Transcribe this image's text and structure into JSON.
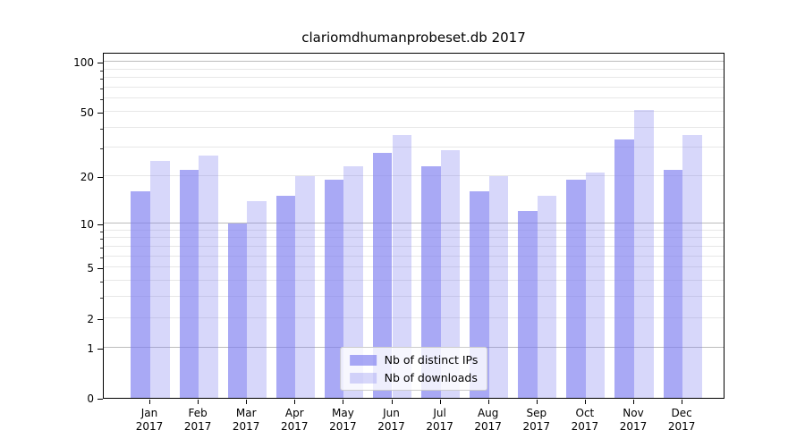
{
  "figure": {
    "background": "#ffffff"
  },
  "chart_data": {
    "type": "bar",
    "title": "clariomdhumanprobeset.db 2017",
    "categories": [
      "Jan",
      "Feb",
      "Mar",
      "Apr",
      "May",
      "Jun",
      "Jul",
      "Aug",
      "Sep",
      "Oct",
      "Nov",
      "Dec"
    ],
    "x_tick_second_line": "2017",
    "series": [
      {
        "name": "Nb of distinct IPs",
        "color": "rgba(124,124,240,0.66)",
        "values": [
          16,
          22,
          10,
          15,
          19,
          28,
          23,
          16,
          12,
          19,
          34,
          22
        ]
      },
      {
        "name": "Nb of downloads",
        "color": "rgba(124,124,240,0.30)",
        "values": [
          25,
          27,
          14,
          20,
          23,
          36,
          29,
          20,
          15,
          21,
          51,
          36
        ]
      }
    ],
    "yscale": "log(1+v)",
    "y_axis": {
      "labeled_ticks": [
        0,
        1,
        2,
        5,
        10,
        20,
        50,
        100
      ],
      "major_gridlines": [
        1,
        10,
        100
      ],
      "minor_gridlines": [
        2,
        3,
        4,
        5,
        6,
        7,
        8,
        9,
        20,
        30,
        40,
        50,
        60,
        70,
        80,
        90
      ],
      "top_value": 115
    },
    "grid": {
      "major_color": "#bcbcbc",
      "minor_color": "#e7e7e7"
    },
    "legend_position": "lower center"
  }
}
